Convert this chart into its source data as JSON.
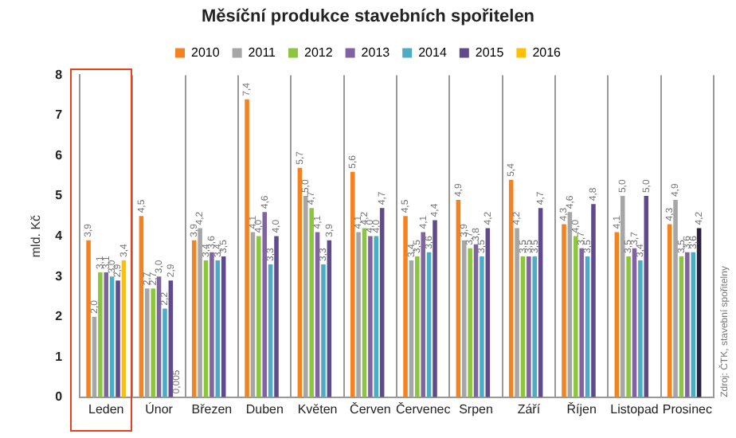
{
  "chart_data": {
    "type": "bar",
    "title": "Měsíční produkce stavebních spořitelen",
    "ylabel": "mld. Kč",
    "categories": [
      "Leden",
      "Únor",
      "Březen",
      "Duben",
      "Květen",
      "Červen",
      "Červenec",
      "Srpen",
      "Září",
      "Říjen",
      "Listopad",
      "Prosinec"
    ],
    "series": [
      {
        "name": "2010",
        "color": "#f58220",
        "values": [
          3.9,
          4.5,
          3.9,
          7.4,
          5.7,
          5.6,
          4.5,
          4.9,
          5.4,
          4.3,
          4.1,
          4.3
        ],
        "value_labels": [
          "3,9",
          "4,5",
          "3,9",
          "7,4",
          "5,7",
          "5,6",
          "4,5",
          "4,9",
          "5,4",
          "4,3",
          "4,1",
          "4,3"
        ]
      },
      {
        "name": "2011",
        "color": "#a6a6a6",
        "values": [
          2.0,
          2.7,
          4.2,
          4.1,
          5.0,
          4.1,
          3.4,
          3.9,
          4.2,
          4.6,
          5.0,
          4.9
        ],
        "value_labels": [
          "2,0",
          "2,7",
          "4,2",
          "4,1",
          "5,0",
          "4,1",
          "3,4",
          "3,9",
          "4,2",
          "4,6",
          "5,0",
          "4,9"
        ]
      },
      {
        "name": "2012",
        "color": "#8cc63f",
        "values": [
          3.1,
          2.7,
          3.4,
          4.0,
          4.7,
          4.2,
          3.5,
          3.7,
          3.5,
          4.0,
          3.5,
          3.5
        ],
        "value_labels": [
          "3,1",
          "2,7",
          "3,4",
          "4,0",
          "4,7",
          "4,2",
          "3,5",
          "3,7",
          "3,5",
          "4,0",
          "3,5",
          "3,5"
        ]
      },
      {
        "name": "2013",
        "color": "#8064a2",
        "values": [
          3.1,
          3.0,
          3.6,
          4.6,
          4.1,
          4.0,
          4.1,
          3.8,
          3.5,
          3.7,
          3.7,
          3.6
        ],
        "value_labels": [
          "3,1",
          "3,0",
          "3,6",
          "4,6",
          "4,1",
          "4,0",
          "4,1",
          "3,8",
          "3,5",
          "3,7",
          "3,7",
          "3,6"
        ]
      },
      {
        "name": "2014",
        "color": "#4bacc6",
        "values": [
          3.0,
          2.2,
          3.4,
          3.3,
          3.3,
          4.0,
          3.6,
          3.5,
          3.5,
          3.5,
          3.4,
          3.6
        ],
        "value_labels": [
          "3,0",
          "2,2",
          "3,4",
          "3,3",
          "3,3",
          "4,0",
          "3,6",
          "3,5",
          "3,5",
          "3,5",
          "3,4",
          "3,6"
        ]
      },
      {
        "name": "2015",
        "color": "#5f4b8b",
        "colors": [
          "#5f4b8b",
          "#5f4b8b",
          "#5f4b8b",
          "#5f4b8b",
          "#5f4b8b",
          "#5f4b8b",
          "#5f4b8b",
          "#5f4b8b",
          "#5f4b8b",
          "#5f4b8b",
          "#5f4b8b",
          "#2b2040"
        ],
        "values": [
          2.9,
          2.9,
          3.5,
          4.0,
          3.9,
          4.7,
          4.4,
          4.2,
          4.7,
          4.8,
          5.0,
          4.2
        ],
        "value_labels": [
          "2,9",
          "2,9",
          "3,5",
          "4,0",
          "3,9",
          "4,7",
          "4,4",
          "4,2",
          "4,7",
          "4,8",
          "5,0",
          "4,2"
        ]
      },
      {
        "name": "2016",
        "color": "#ffc000",
        "values": [
          3.4,
          0.005,
          null,
          null,
          null,
          null,
          null,
          null,
          null,
          null,
          null,
          null
        ],
        "value_labels": [
          "3,4",
          "0,005",
          null,
          null,
          null,
          null,
          null,
          null,
          null,
          null,
          null,
          null
        ]
      }
    ],
    "ylim": [
      0,
      8
    ],
    "yticks": [
      0,
      1,
      2,
      3,
      4,
      5,
      6,
      7,
      8
    ],
    "grid": "x",
    "legend": "top",
    "annotations": [
      "Zdroj: ČTK, stavební spořitelny"
    ]
  }
}
